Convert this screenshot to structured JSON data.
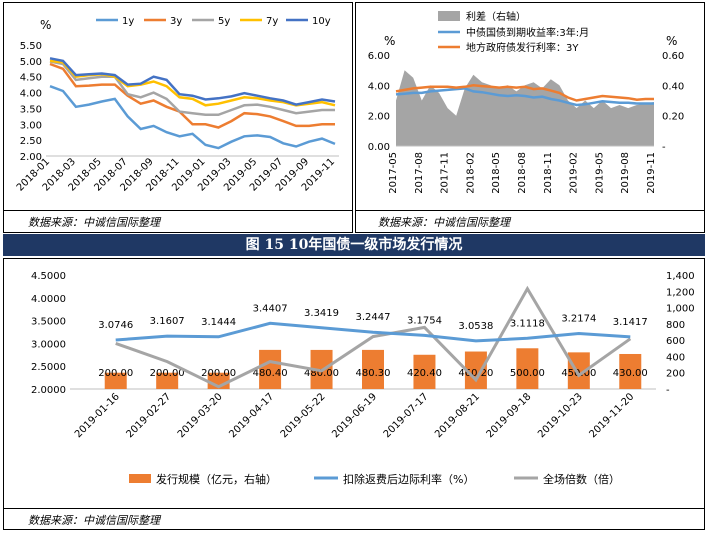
{
  "banner": {
    "title": "图 15 10年国债一级市场发行情况"
  },
  "charts": [
    {
      "source": "数据来源：中诚信国际整理",
      "unit_label": "%",
      "yticks": [
        "5.50",
        "5.00",
        "4.50",
        "4.00",
        "3.50",
        "3.00",
        "2.50",
        "2.00"
      ],
      "ylim": [
        2.0,
        5.5
      ],
      "xticks": [
        "2018-01",
        "2018-03",
        "2018-05",
        "2018-07",
        "2018-09",
        "2018-11",
        "2019-01",
        "2019-03",
        "2019-05",
        "2019-07",
        "2019-09",
        "2019-11"
      ],
      "legend": [
        "1y",
        "3y",
        "5y",
        "7y",
        "10y"
      ],
      "colors": [
        "#5b9bd5",
        "#ed7d31",
        "#a5a5a5",
        "#ffc000",
        "#4472c4"
      ]
    },
    {
      "source": "数据来源：中诚信国际整理",
      "left_unit": "%",
      "right_unit": "%",
      "left_ticks": [
        "6.00",
        "4.00",
        "2.00",
        "0.00"
      ],
      "right_ticks": [
        "0.60",
        "0.40",
        "0.20",
        "-"
      ],
      "xticks": [
        "2017-05",
        "2017-08",
        "2017-11",
        "2018-02",
        "2018-05",
        "2018-08",
        "2018-11",
        "2019-02",
        "2019-05",
        "2019-08",
        "2019-11"
      ],
      "legend": [
        "利差（右轴）",
        "中债国债到期收益率:3年:月",
        "地方政府债发行利率：3Y"
      ],
      "colors": [
        "#a5a5a5",
        "#5b9bd5",
        "#ed7d31"
      ]
    }
  ],
  "chart_data": [
    {
      "type": "line",
      "x": [
        "2018-01",
        "2018-02",
        "2018-03",
        "2018-04",
        "2018-05",
        "2018-06",
        "2018-07",
        "2018-08",
        "2018-09",
        "2018-10",
        "2018-11",
        "2018-12",
        "2019-01",
        "2019-02",
        "2019-03",
        "2019-04",
        "2019-05",
        "2019-06",
        "2019-07",
        "2019-08",
        "2019-09",
        "2019-10",
        "2019-11"
      ],
      "ylim": [
        2.0,
        5.5
      ],
      "series": [
        {
          "name": "1y",
          "values": [
            4.2,
            4.05,
            3.55,
            3.62,
            3.72,
            3.8,
            3.25,
            2.85,
            2.95,
            2.75,
            2.62,
            2.7,
            2.35,
            2.25,
            2.45,
            2.62,
            2.65,
            2.6,
            2.4,
            2.3,
            2.45,
            2.55,
            2.38
          ]
        },
        {
          "name": "3y",
          "values": [
            4.9,
            4.75,
            4.2,
            4.22,
            4.25,
            4.25,
            3.9,
            3.65,
            3.75,
            3.55,
            3.4,
            3.0,
            3.0,
            2.9,
            3.1,
            3.35,
            3.32,
            3.25,
            3.1,
            2.95,
            2.95,
            3.0,
            3.0
          ]
        },
        {
          "name": "5y",
          "values": [
            4.98,
            4.9,
            4.4,
            4.45,
            4.5,
            4.5,
            3.95,
            3.85,
            4.0,
            3.8,
            3.4,
            3.35,
            3.3,
            3.3,
            3.45,
            3.6,
            3.62,
            3.55,
            3.45,
            3.35,
            3.4,
            3.45,
            3.45
          ]
        },
        {
          "name": "7y",
          "values": [
            5.0,
            4.95,
            4.5,
            4.55,
            4.58,
            4.5,
            4.2,
            4.25,
            4.35,
            4.2,
            3.85,
            3.8,
            3.6,
            3.65,
            3.75,
            3.85,
            3.82,
            3.75,
            3.7,
            3.6,
            3.65,
            3.7,
            3.6
          ]
        },
        {
          "name": "10y",
          "values": [
            5.08,
            5.0,
            4.55,
            4.58,
            4.6,
            4.55,
            4.25,
            4.28,
            4.5,
            4.4,
            3.95,
            3.9,
            3.78,
            3.82,
            3.88,
            3.98,
            3.9,
            3.82,
            3.75,
            3.62,
            3.7,
            3.78,
            3.72
          ]
        }
      ]
    },
    {
      "type": "line",
      "x": [
        "2017-05",
        "2017-06",
        "2017-07",
        "2017-08",
        "2017-09",
        "2017-10",
        "2017-11",
        "2017-12",
        "2018-01",
        "2018-02",
        "2018-03",
        "2018-04",
        "2018-05",
        "2018-06",
        "2018-07",
        "2018-08",
        "2018-09",
        "2018-10",
        "2018-11",
        "2018-12",
        "2019-01",
        "2019-02",
        "2019-03",
        "2019-04",
        "2019-05",
        "2019-06",
        "2019-07",
        "2019-08",
        "2019-09",
        "2019-10",
        "2019-11"
      ],
      "ylim": [
        0,
        6
      ],
      "y2lim": [
        0,
        0.6
      ],
      "series": [
        {
          "name": "利差（右轴）",
          "axis": "right",
          "values": [
            0.3,
            0.5,
            0.45,
            0.3,
            0.4,
            0.35,
            0.25,
            0.2,
            0.38,
            0.47,
            0.42,
            0.4,
            0.38,
            0.4,
            0.36,
            0.4,
            0.42,
            0.38,
            0.44,
            0.4,
            0.3,
            0.25,
            0.3,
            0.25,
            0.3,
            0.25,
            0.27,
            0.25,
            0.27,
            0.28,
            0.29
          ]
        },
        {
          "name": "中债国债到期收益率:3年:月",
          "axis": "left",
          "values": [
            3.4,
            3.45,
            3.5,
            3.5,
            3.6,
            3.65,
            3.7,
            3.75,
            3.8,
            3.6,
            3.55,
            3.45,
            3.35,
            3.3,
            3.35,
            3.3,
            3.2,
            3.25,
            3.1,
            3.0,
            2.85,
            2.7,
            2.75,
            2.85,
            2.95,
            2.9,
            2.85,
            2.85,
            2.8,
            2.8,
            2.8
          ]
        },
        {
          "name": "地方政府债发行利率：3Y",
          "axis": "left",
          "values": [
            3.6,
            3.7,
            3.8,
            3.85,
            3.9,
            3.9,
            3.9,
            3.85,
            3.9,
            4.0,
            3.95,
            3.9,
            3.85,
            3.9,
            3.85,
            3.9,
            3.75,
            3.8,
            3.65,
            3.5,
            3.2,
            3.0,
            3.1,
            3.2,
            3.3,
            3.25,
            3.2,
            3.15,
            3.05,
            3.1,
            3.1
          ]
        }
      ]
    },
    {
      "type": "bar",
      "title": "",
      "categories": [
        "2019-01-16",
        "2019-02-27",
        "2019-03-20",
        "2019-04-17",
        "2019-05-22",
        "2019-06-19",
        "2019-07-17",
        "2019-08-21",
        "2019-09-18",
        "2019-10-23",
        "2019-11-20"
      ],
      "ylim": [
        2.0,
        4.5
      ],
      "yticks": [
        "4.5000",
        "4.0000",
        "3.5000",
        "3.0000",
        "2.5000",
        "2.0000"
      ],
      "y2lim": [
        0,
        1400
      ],
      "y2ticks": [
        "1,400",
        "1,200",
        "1,000",
        "800",
        "600",
        "400",
        "200",
        "-"
      ],
      "series": [
        {
          "name": "发行规模（亿元，右轴）",
          "type": "bar",
          "axis": "right",
          "color": "#ed7d31",
          "values": [
            200.0,
            200.0,
            200.0,
            480.4,
            480.0,
            480.3,
            420.4,
            460.2,
            500.0,
            450.0,
            430.0
          ],
          "labels": [
            "200.00",
            "200.00",
            "200.00",
            "480.40",
            "480.00",
            "480.30",
            "420.40",
            "460.20",
            "500.00",
            "450.00",
            "430.00"
          ]
        },
        {
          "name": "扣除返费后边际利率（%）",
          "type": "line",
          "axis": "left",
          "color": "#5b9bd5",
          "values": [
            3.0746,
            3.1607,
            3.1444,
            3.4407,
            3.3419,
            3.2447,
            3.1754,
            3.0538,
            3.1118,
            3.2174,
            3.1417
          ],
          "labels": [
            "3.0746",
            "3.1607",
            "3.1444",
            "3.4407",
            "3.3419",
            "3.2447",
            "3.1754",
            "3.0538",
            "3.1118",
            "3.2174",
            "3.1417"
          ]
        },
        {
          "name": "全场倍数（倍）",
          "type": "line",
          "axis": "right",
          "color": "#a5a5a5",
          "values": [
            3.0,
            2.6,
            2.05,
            2.6,
            2.4,
            3.15,
            3.35,
            2.2,
            4.2,
            2.3,
            3.1
          ],
          "note": "plotted on left-axis scale as read"
        }
      ],
      "source": "数据来源：中诚信国际整理"
    }
  ]
}
